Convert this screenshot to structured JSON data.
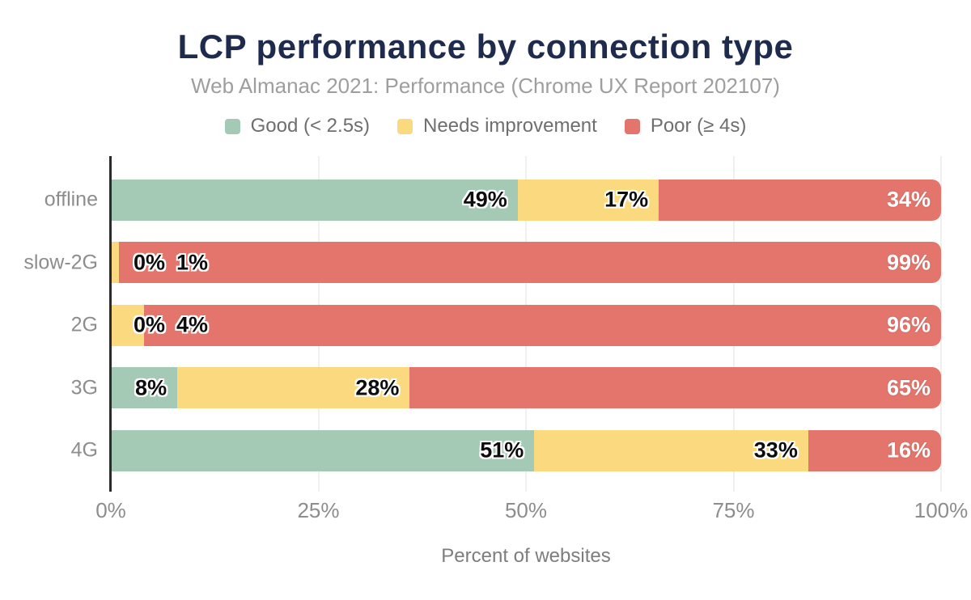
{
  "title": "LCP performance by connection type",
  "subtitle": "Web Almanac 2021: Performance (Chrome UX Report 202107)",
  "legend": [
    {
      "label": "Good (< 2.5s)",
      "color": "#a4c9b4"
    },
    {
      "label": "Needs improvement",
      "color": "#fbd97e"
    },
    {
      "label": "Poor (≥ 4s)",
      "color": "#e3756d"
    }
  ],
  "chart_data": {
    "type": "bar",
    "orientation": "horizontal",
    "stacked": true,
    "title": "LCP performance by connection type",
    "subtitle": "Web Almanac 2021: Performance (Chrome UX Report 202107)",
    "categories": [
      "offline",
      "slow-2G",
      "2G",
      "3G",
      "4G"
    ],
    "series": [
      {
        "name": "Good (< 2.5s)",
        "color": "#a4c9b4",
        "label_color": "dark",
        "values": [
          49,
          0,
          0,
          8,
          51
        ]
      },
      {
        "name": "Needs improvement",
        "color": "#fbd97e",
        "label_color": "dark",
        "values": [
          17,
          1,
          4,
          28,
          33
        ]
      },
      {
        "name": "Poor (≥ 4s)",
        "color": "#e3756d",
        "label_color": "light",
        "values": [
          34,
          99,
          96,
          65,
          16
        ]
      }
    ],
    "value_suffix": "%",
    "xlabel": "Percent of websites",
    "x_ticks": [
      0,
      25,
      50,
      75,
      100
    ],
    "x_tick_labels": [
      "0%",
      "25%",
      "50%",
      "75%",
      "100%"
    ],
    "xlim": [
      0,
      100
    ],
    "grid": true,
    "legend_position": "top"
  },
  "colors": {
    "title": "#1f2b4d",
    "subtitle": "#9e9e9e",
    "axis_line": "#2b2b2b",
    "gridline": "#f0f0f0",
    "tick_text": "#8d8d8d",
    "background": "#ffffff"
  }
}
